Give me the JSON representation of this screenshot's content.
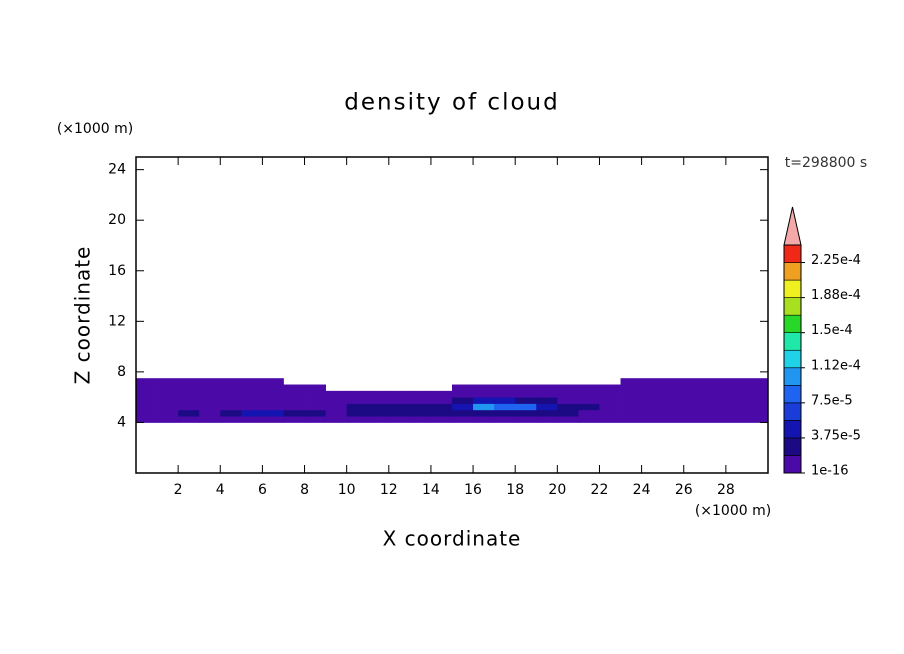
{
  "chart_data": {
    "type": "contour",
    "title": "density of cloud",
    "xlabel": "X coordinate",
    "ylabel": "Z coordinate",
    "xunit": "(×1000 m)",
    "yunit": "(×1000 m)",
    "annotation": "t=298800 s",
    "xlim": [
      0,
      30
    ],
    "ylim": [
      0,
      25
    ],
    "xticks": [
      2,
      4,
      6,
      8,
      10,
      12,
      14,
      16,
      18,
      20,
      22,
      24,
      26,
      28
    ],
    "yticks": [
      4,
      8,
      12,
      16,
      20,
      24
    ],
    "x": [
      0.5,
      1.5,
      2.5,
      3.5,
      4.5,
      5.5,
      6.5,
      7.5,
      8.5,
      9.5,
      10.5,
      11.5,
      12.5,
      13.5,
      14.5,
      15.5,
      16.5,
      17.5,
      18.5,
      19.5,
      20.5,
      21.5,
      22.5,
      23.5,
      24.5,
      25.5,
      26.5,
      27.5,
      28.5,
      29.5
    ],
    "y": [
      4.25,
      4.75,
      5.25,
      5.75,
      6.25,
      6.75,
      7.25
    ],
    "z": [
      [
        1e-05,
        1e-05,
        1e-05,
        1e-05,
        1e-05,
        1e-05,
        1e-05,
        1e-05,
        1e-05,
        1e-05,
        1e-05,
        1e-05,
        1e-05,
        1e-05,
        1e-05,
        1e-05,
        1e-05,
        1e-05,
        1e-05,
        1e-05,
        1e-05,
        1e-05,
        1e-05,
        1e-05,
        1e-05,
        1e-05,
        1e-05,
        1e-05,
        1e-05,
        1e-05
      ],
      [
        1e-05,
        1e-05,
        3e-05,
        1e-05,
        3e-05,
        5e-05,
        5e-05,
        3e-05,
        3e-05,
        1e-05,
        3e-05,
        3e-05,
        3e-05,
        3e-05,
        3e-05,
        3e-05,
        3e-05,
        3e-05,
        3e-05,
        3e-05,
        3e-05,
        1e-05,
        1e-05,
        1e-05,
        1e-05,
        1e-05,
        1e-05,
        1e-05,
        1e-05,
        1e-05
      ],
      [
        1e-05,
        1e-05,
        1e-05,
        1e-05,
        1e-05,
        1e-05,
        1e-05,
        1e-05,
        1e-05,
        1e-05,
        3e-05,
        3e-05,
        3e-05,
        3e-05,
        3e-05,
        5e-05,
        0.00011,
        8e-05,
        8e-05,
        5e-05,
        3e-05,
        3e-05,
        1e-05,
        1e-05,
        1e-05,
        1e-05,
        1e-05,
        1e-05,
        1e-05,
        1e-05
      ],
      [
        1e-05,
        1e-05,
        1e-05,
        1e-05,
        1e-05,
        1e-05,
        1e-05,
        1e-05,
        1e-05,
        1e-05,
        1e-05,
        1e-05,
        1e-05,
        1e-05,
        1e-05,
        3e-05,
        5e-05,
        5e-05,
        3e-05,
        3e-05,
        1e-05,
        1e-05,
        1e-05,
        1e-05,
        1e-05,
        1e-05,
        1e-05,
        1e-05,
        1e-05,
        1e-05
      ],
      [
        1e-05,
        1e-05,
        1e-05,
        1e-05,
        1e-05,
        1e-05,
        1e-05,
        1e-05,
        1e-05,
        1e-05,
        1e-05,
        1e-05,
        1e-05,
        1e-05,
        1e-05,
        1e-05,
        1e-05,
        1e-05,
        1e-05,
        1e-05,
        1e-05,
        1e-05,
        1e-05,
        1e-05,
        1e-05,
        1e-05,
        1e-05,
        1e-05,
        1e-05,
        1e-05
      ],
      [
        1e-05,
        1e-05,
        1e-05,
        1e-05,
        1e-05,
        1e-05,
        1e-05,
        1e-05,
        1e-05,
        0,
        0,
        0,
        0,
        0,
        0,
        1e-05,
        1e-05,
        1e-05,
        1e-05,
        1e-05,
        1e-05,
        1e-05,
        1e-05,
        1e-05,
        1e-05,
        1e-05,
        1e-05,
        1e-05,
        1e-05,
        1e-05
      ],
      [
        1e-05,
        1e-05,
        1e-05,
        1e-05,
        1e-05,
        1e-05,
        1e-05,
        0,
        0,
        0,
        0,
        0,
        0,
        0,
        0,
        0,
        0,
        0,
        0,
        0,
        0,
        0,
        0,
        1e-05,
        1e-05,
        1e-05,
        1e-05,
        1e-05,
        1e-05,
        1e-05
      ]
    ],
    "levels": [
      1e-16,
      1.875e-05,
      3.75e-05,
      5.625e-05,
      7.5e-05,
      9.375e-05,
      0.0001125,
      0.00013125,
      0.00015,
      0.00016875,
      0.0001875,
      0.00020625,
      0.000225,
      0.00024375
    ],
    "colors": [
      "#4b0aa8",
      "#1c0a84",
      "#1414b0",
      "#1a3cd8",
      "#1e64f0",
      "#2096f0",
      "#20d2e8",
      "#20e8a8",
      "#28d828",
      "#a8e020",
      "#f0f020",
      "#f0a020",
      "#f02818"
    ],
    "extend_color": "#f4a8a8",
    "cbticks": [
      1e-16,
      {
        "value": 3.75e-05,
        "label": "3.75e-5"
      },
      {
        "value": 7.5e-05,
        "label": "7.5e-5"
      },
      {
        "value": 0.0001125,
        "label": "1.12e-4"
      },
      {
        "value": 0.00015,
        "label": "1.5e-4"
      },
      {
        "value": 0.0001875,
        "label": "1.88e-4"
      },
      {
        "value": 0.000225,
        "label": "2.25e-4"
      }
    ]
  }
}
